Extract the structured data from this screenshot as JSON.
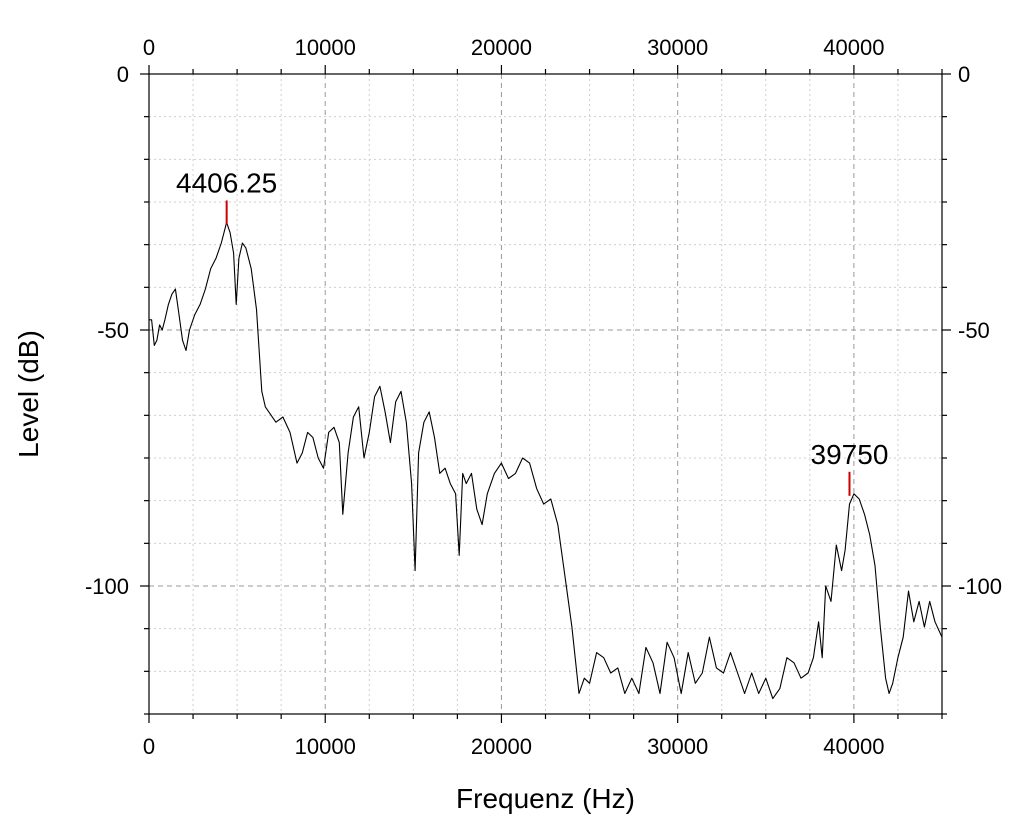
{
  "chart_data": {
    "type": "line",
    "title": "",
    "xlabel": "Frequenz (Hz)",
    "ylabel": "Level (dB)",
    "xlim": [
      0,
      45000
    ],
    "ylim": [
      -125,
      0
    ],
    "x_ticks": [
      0,
      10000,
      20000,
      30000,
      40000
    ],
    "x_tick_labels": [
      "0",
      "10000",
      "20000",
      "30000",
      "40000"
    ],
    "y_ticks": [
      0,
      -50,
      -100
    ],
    "y_tick_labels": [
      "0",
      "-50",
      "-100"
    ],
    "grid": true,
    "mirror_axes": true,
    "line_color": "#000000",
    "marker_color": "#cc0000",
    "annotations": [
      {
        "x": 4406.25,
        "y": -29,
        "text": "4406.25"
      },
      {
        "x": 39750,
        "y": -82,
        "text": "39750"
      }
    ],
    "series": [
      {
        "x": [
          0,
          150,
          300,
          450,
          600,
          750,
          900,
          1100,
          1300,
          1500,
          1700,
          1900,
          2100,
          2300,
          2600,
          2900,
          3200,
          3500,
          3800,
          4100,
          4406.25,
          4600,
          4800,
          4950,
          5100,
          5300,
          5500,
          5800,
          6100,
          6400,
          6600,
          6800,
          7200,
          7600,
          8000,
          8400,
          8700,
          9000,
          9300,
          9600,
          9900,
          10200,
          10500,
          10800,
          11000,
          11300,
          11600,
          11900,
          12200,
          12500,
          12800,
          13100,
          13400,
          13700,
          14000,
          14300,
          14600,
          14900,
          15100,
          15300,
          15600,
          15900,
          16200,
          16500,
          16800,
          17100,
          17400,
          17600,
          17800,
          18000,
          18300,
          18600,
          18900,
          19200,
          19600,
          20000,
          20400,
          20800,
          21200,
          21600,
          22000,
          22400,
          22800,
          23200,
          23600,
          24000,
          24400,
          24700,
          25000,
          25400,
          25800,
          26200,
          26600,
          27000,
          27400,
          27800,
          28200,
          28600,
          29000,
          29400,
          29800,
          30200,
          30600,
          31000,
          31400,
          31800,
          32200,
          32600,
          33000,
          33400,
          33800,
          34200,
          34600,
          35000,
          35400,
          35800,
          36200,
          36600,
          37000,
          37400,
          37700,
          38000,
          38200,
          38400,
          38700,
          39000,
          39300,
          39500,
          39750,
          40000,
          40300,
          40600,
          40900,
          41200,
          41500,
          41800,
          42000,
          42200,
          42500,
          42800,
          43100,
          43400,
          43700,
          44000,
          44300,
          44600,
          45000
        ],
        "values": [
          -48,
          -48,
          -53,
          -52,
          -49,
          -50,
          -48,
          -45,
          -43,
          -42,
          -47,
          -52,
          -54,
          -50,
          -47,
          -45,
          -42,
          -38,
          -36,
          -33,
          -29,
          -31,
          -35,
          -45,
          -36,
          -33,
          -34,
          -38,
          -46,
          -62,
          -65,
          -66,
          -68,
          -67,
          -70,
          -76,
          -74,
          -70,
          -71,
          -75,
          -77,
          -70,
          -69,
          -72,
          -86,
          -74,
          -67,
          -65,
          -75,
          -70,
          -63,
          -61,
          -66,
          -72,
          -64,
          -62,
          -68,
          -80,
          -97,
          -74,
          -68,
          -66,
          -71,
          -78,
          -77,
          -80,
          -82,
          -94,
          -78,
          -80,
          -78,
          -85,
          -88,
          -82,
          -78,
          -76,
          -79,
          -78,
          -75,
          -76,
          -81,
          -84,
          -83,
          -88,
          -98,
          -108,
          -121,
          -118,
          -119,
          -113,
          -114,
          -117,
          -116,
          -121,
          -118,
          -121,
          -112,
          -115,
          -121,
          -111,
          -114,
          -121,
          -113,
          -119,
          -117,
          -110,
          -116,
          -117,
          -113,
          -117,
          -121,
          -117,
          -121,
          -118,
          -122,
          -120,
          -114,
          -115,
          -118,
          -117,
          -114,
          -107,
          -114,
          -100,
          -103,
          -92,
          -97,
          -93,
          -84,
          -82,
          -83,
          -86,
          -90,
          -96,
          -108,
          -118,
          -121,
          -119,
          -114,
          -110,
          -101,
          -107,
          -103,
          -108,
          -103,
          -107,
          -110
        ]
      }
    ]
  }
}
